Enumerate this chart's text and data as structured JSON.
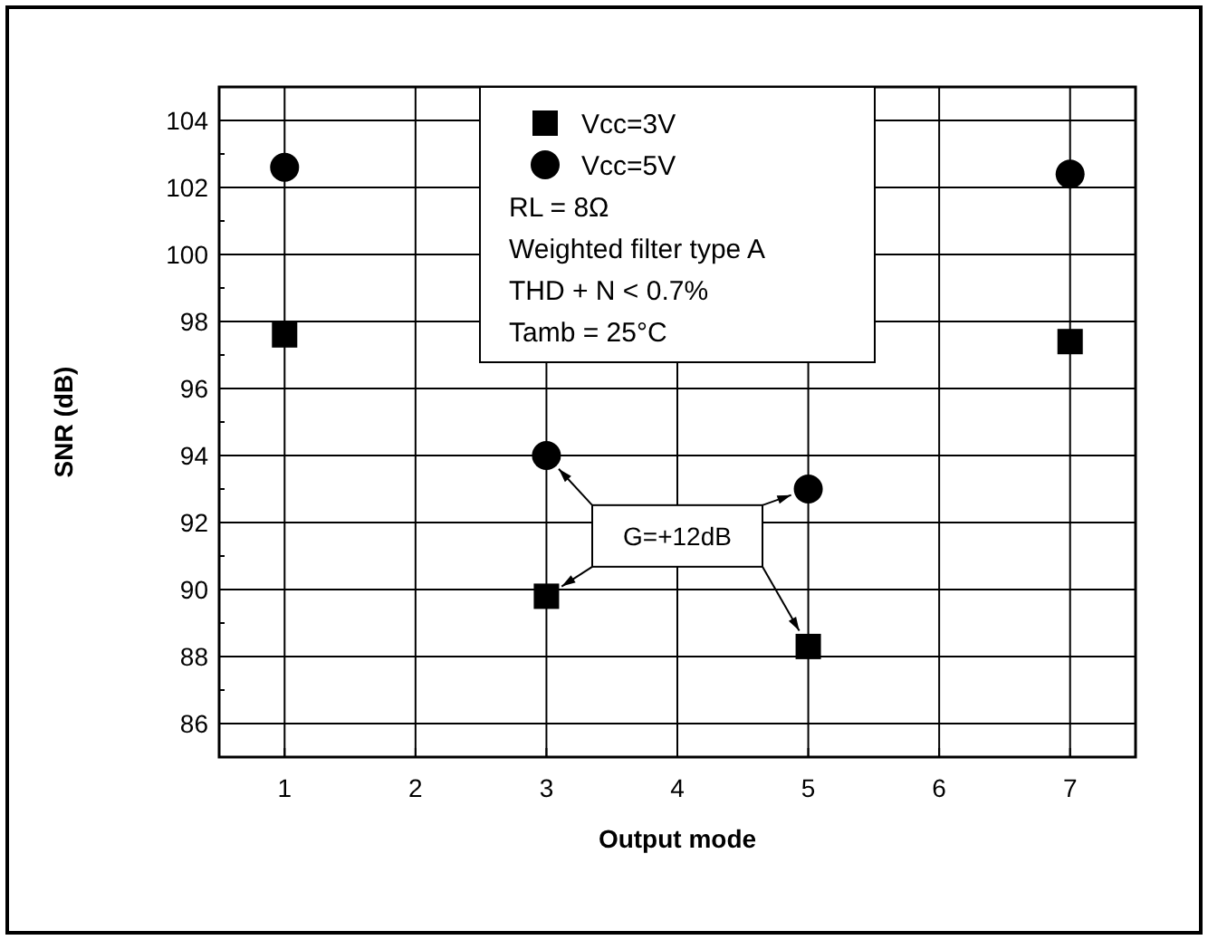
{
  "chart_data": {
    "type": "scatter",
    "xlabel": "Output mode",
    "ylabel": "SNR (dB)",
    "xlim": [
      0.5,
      7.5
    ],
    "xticks": [
      1,
      2,
      3,
      4,
      5,
      6,
      7
    ],
    "ylim": [
      85,
      105
    ],
    "yticks": [
      {
        "value": 85,
        "label": null
      },
      86,
      {
        "value": 87,
        "label": null
      },
      88,
      {
        "value": 89,
        "label": null
      },
      90,
      {
        "value": 91,
        "label": null
      },
      92,
      {
        "value": 93,
        "label": null
      },
      94,
      {
        "value": 95,
        "label": null
      },
      96,
      {
        "value": 97,
        "label": null
      },
      98,
      {
        "value": 99,
        "label": null
      },
      100,
      {
        "value": 101,
        "label": null
      },
      102,
      {
        "value": 103,
        "label": null
      },
      104,
      {
        "value": 105,
        "label": null
      }
    ],
    "grid": true,
    "legend": "top",
    "series": [
      {
        "name": "Vcc=3V",
        "color": "#000000",
        "marker": "square",
        "x": [
          1,
          3,
          5,
          7
        ],
        "values": [
          97.6,
          89.8,
          88.3,
          97.4
        ]
      },
      {
        "name": "Vcc=5V",
        "color": "#000000",
        "marker": "circle",
        "x": [
          1,
          3,
          5,
          7
        ],
        "values": [
          102.6,
          94.0,
          93.0,
          102.4
        ]
      }
    ],
    "annotations": [
      "RL = 8Ω",
      "Weighted filter type A",
      "THD + N < 0.7%",
      "Tamb = 25°C",
      "G=+12dB"
    ]
  }
}
